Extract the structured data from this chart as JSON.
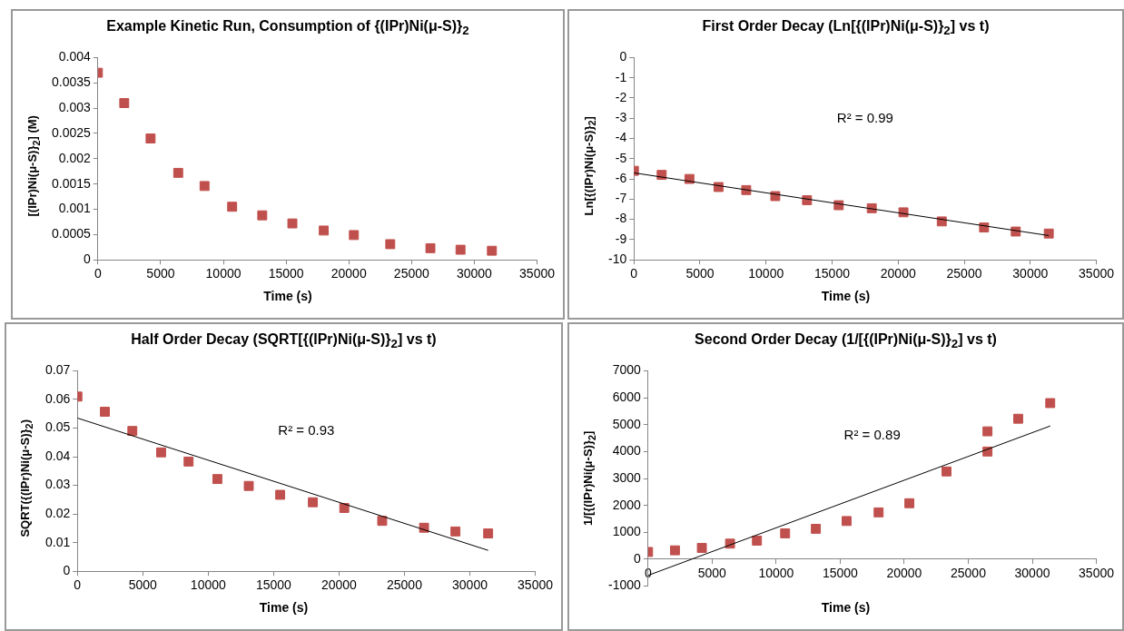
{
  "chart_data": [
    {
      "type": "scatter",
      "title": "Example  Kinetic Run, Consumption of {(IPr)Ni(μ-S)}$_{2}$",
      "xlabel": "Time (s)",
      "ylabel": "[(IPr)Ni(μ-S)}$_{2}$] (M)",
      "marker": "square",
      "grid": false,
      "legend": false,
      "xlim": [
        0,
        35000
      ],
      "xticks": [
        0,
        5000,
        10000,
        15000,
        20000,
        25000,
        30000,
        35000
      ],
      "ylim": [
        0,
        0.004
      ],
      "yticks": [
        0,
        0.0005,
        0.001,
        0.0015,
        0.002,
        0.0025,
        0.003,
        0.0035,
        0.004
      ],
      "series": [
        {
          "color": "#c0504d",
          "x": [
            0,
            2100,
            4200,
            6400,
            8500,
            10700,
            13100,
            15500,
            18000,
            20400,
            23300,
            26500,
            28900,
            31400
          ],
          "values": [
            0.0037,
            0.0031,
            0.0024,
            0.00172,
            0.00146,
            0.00105,
            0.00088,
            0.00072,
            0.00058,
            0.00049,
            0.00031,
            0.00023,
            0.0002,
            0.00018
          ]
        }
      ]
    },
    {
      "type": "scatter",
      "title": "First Order Decay (Ln[{(IPr)Ni(μ-S)}$_{2}$] vs t)",
      "xlabel": "Time (s)",
      "ylabel": "Ln[{(IPr)Ni(μ-S)}$_{2}$]",
      "marker": "square",
      "grid": false,
      "legend": false,
      "xlim": [
        0,
        35000
      ],
      "xticks": [
        0,
        5000,
        10000,
        15000,
        20000,
        25000,
        30000,
        35000
      ],
      "ylim": [
        -10,
        0
      ],
      "yticks": [
        -10,
        -9,
        -8,
        -7,
        -6,
        -5,
        -4,
        -3,
        -2,
        -1,
        0
      ],
      "annotations": [
        "R² = 0.99"
      ],
      "series": [
        {
          "color": "#c0504d",
          "x": [
            0,
            2100,
            4200,
            6400,
            8500,
            10700,
            13100,
            15500,
            18000,
            20400,
            23300,
            26500,
            28900,
            31400
          ],
          "values": [
            -5.6,
            -5.8,
            -6.0,
            -6.4,
            -6.55,
            -6.85,
            -7.05,
            -7.3,
            -7.45,
            -7.65,
            -8.1,
            -8.4,
            -8.6,
            -8.7
          ]
        },
        {
          "type": "line",
          "marker": "none",
          "color": "#000000",
          "x": [
            0,
            31400
          ],
          "values": [
            -5.7,
            -8.8
          ]
        }
      ]
    },
    {
      "type": "scatter",
      "title": "Half Order Decay (SQRT[{(IPr)Ni(μ-S)}$_{2}$] vs t)",
      "xlabel": "Time (s)",
      "ylabel": "SQRT({(IPr)Ni(μ-S)}$_{2}$)",
      "marker": "square",
      "grid": false,
      "legend": false,
      "xlim": [
        0,
        35000
      ],
      "xticks": [
        0,
        5000,
        10000,
        15000,
        20000,
        25000,
        30000,
        35000
      ],
      "ylim": [
        0,
        0.07
      ],
      "yticks": [
        0,
        0.01,
        0.02,
        0.03,
        0.04,
        0.05,
        0.06,
        0.07
      ],
      "annotations": [
        "R² = 0.93"
      ],
      "series": [
        {
          "color": "#c0504d",
          "x": [
            0,
            2100,
            4200,
            6400,
            8500,
            10700,
            13100,
            15500,
            18000,
            20400,
            23300,
            26500,
            28900,
            31400
          ],
          "values": [
            0.061,
            0.0557,
            0.049,
            0.0415,
            0.0383,
            0.0322,
            0.0298,
            0.0267,
            0.0241,
            0.0221,
            0.0176,
            0.0152,
            0.0139,
            0.0132
          ]
        },
        {
          "type": "line",
          "marker": "none",
          "color": "#000000",
          "x": [
            0,
            31400
          ],
          "values": [
            0.0535,
            0.0073
          ]
        }
      ]
    },
    {
      "type": "scatter",
      "title": "Second Order Decay (1/[{(IPr)Ni(μ-S)}$_{2}$] vs t)",
      "xlabel": "Time (s)",
      "ylabel": "1/[{(IPr)Ni(μ-S)}$_{2}$]",
      "marker": "square",
      "grid": false,
      "legend": false,
      "xlim": [
        0,
        35000
      ],
      "xticks": [
        0,
        5000,
        10000,
        15000,
        20000,
        25000,
        30000,
        35000
      ],
      "ylim": [
        -1000,
        7000
      ],
      "yticks": [
        -1000,
        0,
        1000,
        2000,
        3000,
        4000,
        5000,
        6000,
        7000
      ],
      "annotations": [
        "R² = 0.89"
      ],
      "series": [
        {
          "color": "#c0504d",
          "x": [
            0,
            2100,
            4200,
            6400,
            8500,
            10700,
            13100,
            15500,
            18000,
            20400,
            23300,
            26500,
            26500,
            28900,
            31400
          ],
          "values": [
            270,
            330,
            420,
            580,
            690,
            960,
            1130,
            1420,
            1740,
            2080,
            3260,
            4000,
            4750,
            5220,
            5800
          ]
        },
        {
          "type": "line",
          "marker": "none",
          "color": "#000000",
          "x": [
            0,
            31400
          ],
          "values": [
            -600,
            4950
          ]
        }
      ]
    }
  ]
}
